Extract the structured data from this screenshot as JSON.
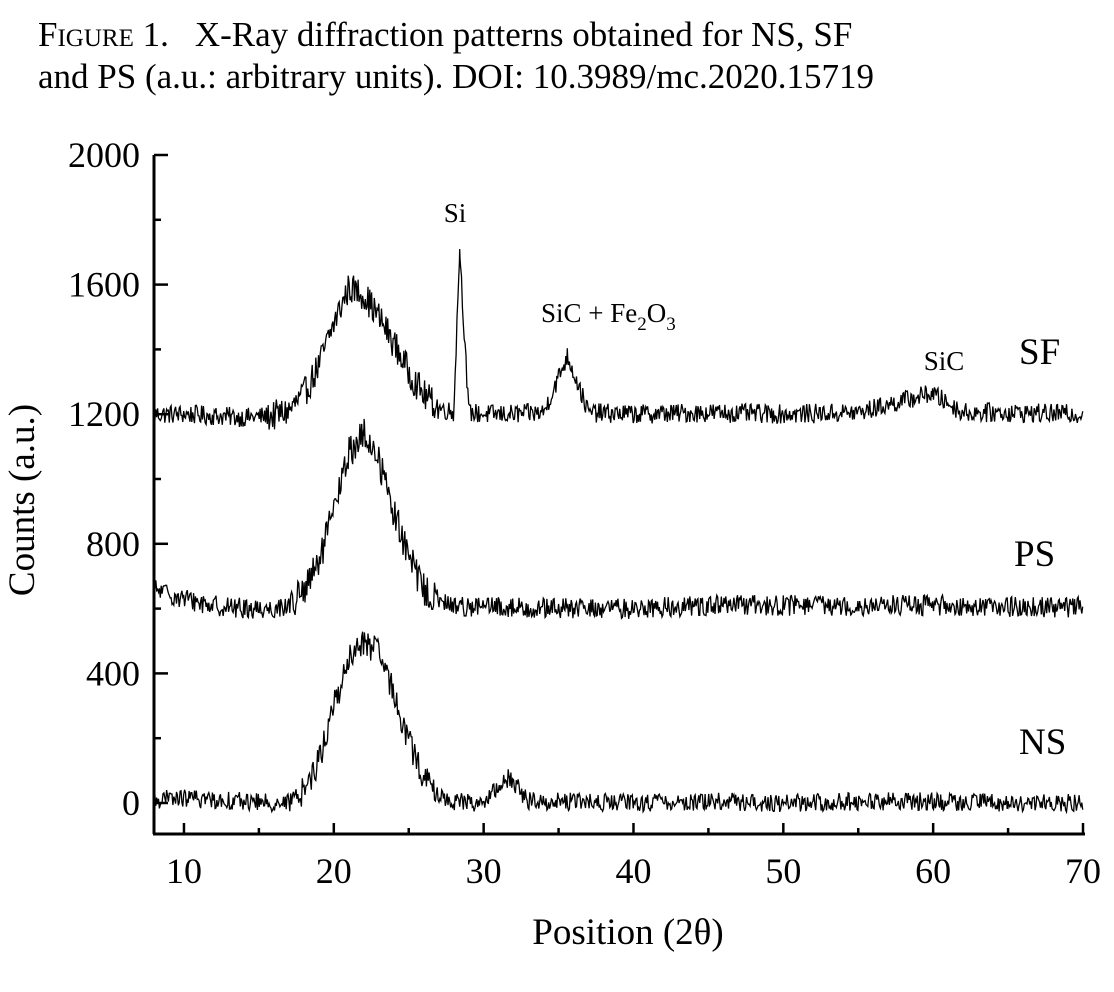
{
  "caption": {
    "figure_label": "Figure 1.",
    "line1": "X-Ray diffraction patterns obtained for NS, SF",
    "line2": "and PS (a.u.: arbitrary units). DOI: 10.3989/mc.2020.15719"
  },
  "chart_data": {
    "type": "line",
    "title": "",
    "xlabel": "Position (2θ)",
    "ylabel": "Counts (a.u.)",
    "xlim": [
      8,
      70
    ],
    "ylim": [
      -100,
      2000
    ],
    "x_ticks": [
      10,
      20,
      30,
      40,
      50,
      60,
      70
    ],
    "y_ticks": [
      0,
      400,
      800,
      1200,
      1600,
      2000
    ],
    "grid": false,
    "legend": "none",
    "line_color": "#000000",
    "series": [
      {
        "name": "SF",
        "baseline": 1200,
        "noise": 30,
        "hump": {
          "center": 21.3,
          "height": 400,
          "width": 2.6
        },
        "x": [
          8,
          10,
          12,
          14,
          16,
          17,
          18,
          19,
          20,
          21,
          22,
          23,
          24,
          25,
          26,
          27,
          28,
          28.4,
          29,
          30,
          32,
          34,
          35.6,
          37,
          40,
          45,
          50,
          55,
          59.9,
          62,
          65,
          70
        ],
        "y": [
          1200,
          1200,
          1195,
          1190,
          1195,
          1210,
          1260,
          1350,
          1480,
          1590,
          1570,
          1500,
          1420,
          1330,
          1260,
          1220,
          1205,
          1710,
          1205,
          1200,
          1200,
          1205,
          1380,
          1205,
          1200,
          1205,
          1200,
          1205,
          1265,
          1205,
          1205,
          1200
        ]
      },
      {
        "name": "PS",
        "baseline": 600,
        "noise": 32,
        "hump": {
          "center": 22.0,
          "height": 540,
          "width": 2.3
        },
        "x": [
          8,
          10,
          12,
          14,
          16,
          17,
          18,
          19,
          20,
          21,
          22,
          23,
          24,
          25,
          26,
          27,
          28,
          30,
          35,
          40,
          45,
          50,
          55,
          60,
          65,
          70
        ],
        "y": [
          660,
          630,
          610,
          600,
          600,
          610,
          650,
          740,
          900,
          1080,
          1140,
          1060,
          900,
          760,
          660,
          620,
          610,
          605,
          600,
          600,
          610,
          610,
          610,
          610,
          605,
          605
        ]
      },
      {
        "name": "NS",
        "baseline": 0,
        "noise": 28,
        "hump": {
          "center": 22.3,
          "height": 500,
          "width": 2.1
        },
        "x": [
          8,
          10,
          12,
          14,
          16,
          17,
          18,
          19,
          20,
          21,
          22,
          23,
          24,
          25,
          26,
          27,
          28,
          30,
          31.7,
          33,
          35,
          40,
          45,
          50,
          55,
          60,
          65,
          70
        ],
        "y": [
          10,
          15,
          10,
          5,
          0,
          0,
          40,
          130,
          300,
          440,
          500,
          460,
          340,
          190,
          80,
          20,
          5,
          0,
          80,
          5,
          5,
          0,
          5,
          0,
          5,
          5,
          0,
          0
        ]
      }
    ],
    "annotations": [
      {
        "text": "Si",
        "x": 28.4
      },
      {
        "text": "SiC + Fe",
        "sub1": "2",
        "mid": "O",
        "sub2": "3",
        "x": 35.6
      },
      {
        "text": "SiC",
        "x": 59.9
      }
    ],
    "series_labels": [
      "SF",
      "PS",
      "NS"
    ]
  }
}
